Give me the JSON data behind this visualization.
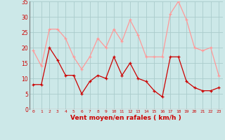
{
  "x": [
    0,
    1,
    2,
    3,
    4,
    5,
    6,
    7,
    8,
    9,
    10,
    11,
    12,
    13,
    14,
    15,
    16,
    17,
    18,
    19,
    20,
    21,
    22,
    23
  ],
  "wind_avg": [
    8,
    8,
    20,
    16,
    11,
    11,
    5,
    9,
    11,
    10,
    17,
    11,
    15,
    10,
    9,
    6,
    4,
    17,
    17,
    9,
    7,
    6,
    6,
    7
  ],
  "wind_gust": [
    19,
    14,
    26,
    26,
    23,
    17,
    13,
    17,
    23,
    20,
    26,
    22,
    29,
    24,
    17,
    17,
    17,
    31,
    35,
    29,
    20,
    19,
    20,
    11
  ],
  "xlabel": "Vent moyen/en rafales ( km/h )",
  "ylim": [
    0,
    35
  ],
  "yticks": [
    0,
    5,
    10,
    15,
    20,
    25,
    30,
    35
  ],
  "bg_color": "#cce8e8",
  "grid_color": "#aacccc",
  "line_color_avg": "#cc0000",
  "line_color_gust": "#ff9999",
  "linewidth": 0.9,
  "marker": "+"
}
